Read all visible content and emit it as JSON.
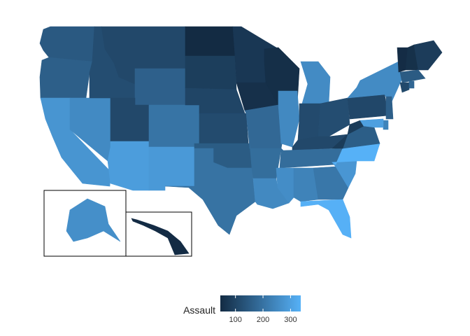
{
  "map": {
    "type": "choropleth",
    "region": "United States",
    "variable": "Assault",
    "color_low": "#132B43",
    "color_high": "#56B1F7",
    "insets": [
      "Alaska",
      "Hawaii"
    ],
    "states": [
      {
        "name": "Washington",
        "value": 145
      },
      {
        "name": "Oregon",
        "value": 159
      },
      {
        "name": "California",
        "value": 276
      },
      {
        "name": "Nevada",
        "value": 252
      },
      {
        "name": "Idaho",
        "value": 120
      },
      {
        "name": "Montana",
        "value": 109
      },
      {
        "name": "Wyoming",
        "value": 161
      },
      {
        "name": "Utah",
        "value": 109
      },
      {
        "name": "Arizona",
        "value": 294
      },
      {
        "name": "Colorado",
        "value": 204
      },
      {
        "name": "New Mexico",
        "value": 285
      },
      {
        "name": "North Dakota",
        "value": 45
      },
      {
        "name": "South Dakota",
        "value": 86
      },
      {
        "name": "Nebraska",
        "value": 102
      },
      {
        "name": "Kansas",
        "value": 115
      },
      {
        "name": "Oklahoma",
        "value": 151
      },
      {
        "name": "Texas",
        "value": 201
      },
      {
        "name": "Minnesota",
        "value": 72
      },
      {
        "name": "Iowa",
        "value": 56
      },
      {
        "name": "Missouri",
        "value": 178
      },
      {
        "name": "Arkansas",
        "value": 190
      },
      {
        "name": "Louisiana",
        "value": 249
      },
      {
        "name": "Wisconsin",
        "value": 53
      },
      {
        "name": "Illinois",
        "value": 249
      },
      {
        "name": "Michigan",
        "value": 255
      },
      {
        "name": "Indiana",
        "value": 113
      },
      {
        "name": "Ohio",
        "value": 120
      },
      {
        "name": "Kentucky",
        "value": 109
      },
      {
        "name": "Tennessee",
        "value": 188
      },
      {
        "name": "Mississippi",
        "value": 259
      },
      {
        "name": "Alabama",
        "value": 236
      },
      {
        "name": "Georgia",
        "value": 211
      },
      {
        "name": "Florida",
        "value": 335
      },
      {
        "name": "South Carolina",
        "value": 279
      },
      {
        "name": "North Carolina",
        "value": 337
      },
      {
        "name": "Virginia",
        "value": 156
      },
      {
        "name": "West Virginia",
        "value": 81
      },
      {
        "name": "Pennsylvania",
        "value": 106
      },
      {
        "name": "New York",
        "value": 254
      },
      {
        "name": "Vermont",
        "value": 48
      },
      {
        "name": "New Hampshire",
        "value": 57
      },
      {
        "name": "Maine",
        "value": 83
      },
      {
        "name": "Massachusetts",
        "value": 149
      },
      {
        "name": "Connecticut",
        "value": 110
      },
      {
        "name": "Rhode Island",
        "value": 174
      },
      {
        "name": "New Jersey",
        "value": 159
      },
      {
        "name": "Delaware",
        "value": 238
      },
      {
        "name": "Maryland",
        "value": 300
      },
      {
        "name": "Alaska",
        "value": 263
      },
      {
        "name": "Hawaii",
        "value": 46
      }
    ]
  },
  "legend": {
    "title": "Assault",
    "min": 45,
    "max": 337,
    "ticks": [
      100,
      200,
      300
    ]
  }
}
